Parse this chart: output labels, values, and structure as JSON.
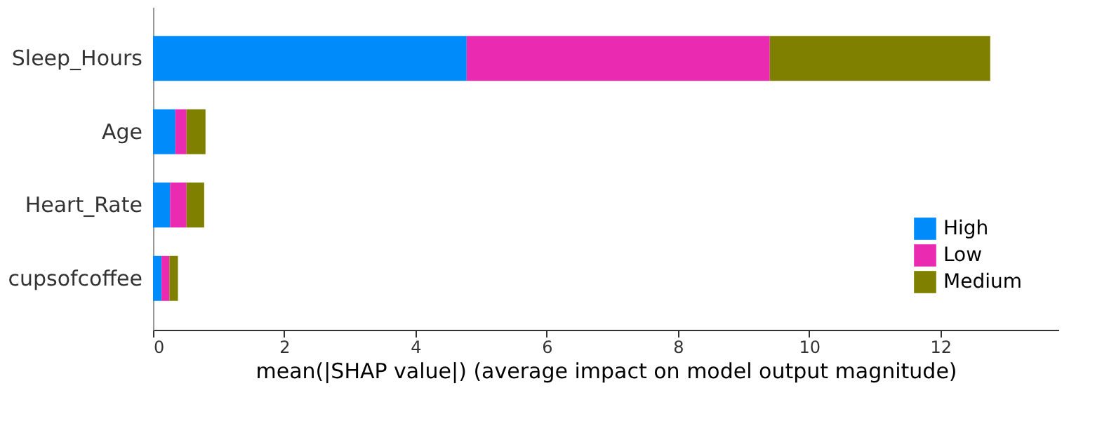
{
  "chart_data": {
    "type": "bar",
    "orientation": "horizontal",
    "stacked": true,
    "xlabel": "mean(|SHAP value|) (average impact on model output magnitude)",
    "categories": [
      "Sleep_Hours",
      "Age",
      "Heart_Rate",
      "cupsofcoffee"
    ],
    "series": [
      {
        "name": "High",
        "color": "#008bfb",
        "values": [
          4.78,
          0.34,
          0.26,
          0.13
        ]
      },
      {
        "name": "Low",
        "color": "#ea2ab0",
        "values": [
          4.62,
          0.17,
          0.25,
          0.12
        ]
      },
      {
        "name": "Medium",
        "color": "#808000",
        "values": [
          3.36,
          0.29,
          0.27,
          0.13
        ]
      }
    ],
    "xlim": [
      0,
      13.8
    ],
    "xticks": [
      0,
      2,
      4,
      6,
      8,
      10,
      12
    ],
    "grid": false,
    "legend": "bottom right"
  }
}
